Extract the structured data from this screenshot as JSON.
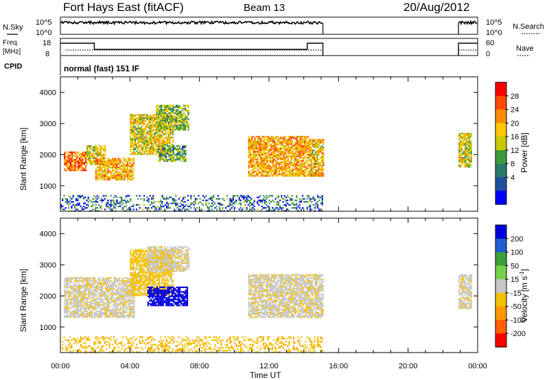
{
  "header": {
    "station": "Fort Hays East (fitACF)",
    "beam": "Beam 13",
    "date": "20/Aug/2012"
  },
  "noise_panel": {
    "left_label": "N.Sky",
    "right_label": "N.Search",
    "left_ticks": [
      "10^5",
      "10^0"
    ],
    "right_ticks": [
      "10^5",
      "10^0"
    ]
  },
  "freq_panel": {
    "left_label_1": "Freq.",
    "left_label_2": "[MHz]",
    "right_label": "Nave",
    "left_ticks": [
      "18",
      "8"
    ],
    "right_ticks": [
      "60",
      "0"
    ]
  },
  "cpid": {
    "label": "CPID",
    "mode": "normal (fast) 151 IF"
  },
  "power_colorbar": {
    "label": "Power [dB]",
    "ticks": [
      "28",
      "24",
      "20",
      "16",
      "12",
      "8",
      "4"
    ],
    "colors": [
      "#ff0000",
      "#ff4a00",
      "#ff8c00",
      "#ffc800",
      "#c8c800",
      "#3c9a3c",
      "#2a7a6a",
      "#1f4f9f",
      "#0000ff"
    ]
  },
  "velocity_colorbar": {
    "label": "Velocity [m s-1]",
    "ticks": [
      "200",
      "100",
      "50",
      "15",
      "-15",
      "-50",
      "-100",
      "-200"
    ],
    "colors": [
      "#0000dd",
      "#1f5fd0",
      "#3aa03a",
      "#77d24a",
      "#c8c8c8",
      "#f4c000",
      "#ff9a00",
      "#ff6000",
      "#ff0000"
    ]
  },
  "chart_data": [
    {
      "type": "heatmap",
      "panel": "power",
      "xlabel": "",
      "ylabel": "Slant Range [km]",
      "yticks": [
        1000,
        2000,
        3000,
        4000
      ],
      "ylim": [
        180,
        4500
      ],
      "xlim_hours": [
        0,
        24
      ],
      "regions": [
        {
          "x": [
            0.2,
            1.5
          ],
          "y": [
            1500,
            2100
          ],
          "value": 24
        },
        {
          "x": [
            1.5,
            2.6
          ],
          "y": [
            1700,
            2300
          ],
          "value": 16
        },
        {
          "x": [
            2.0,
            4.2
          ],
          "y": [
            1200,
            1900
          ],
          "value": 20
        },
        {
          "x": [
            4.0,
            6.5
          ],
          "y": [
            2000,
            3300
          ],
          "value": 16
        },
        {
          "x": [
            5.5,
            7.4
          ],
          "y": [
            2800,
            3600
          ],
          "value": 12
        },
        {
          "x": [
            5.6,
            7.2
          ],
          "y": [
            1800,
            2300
          ],
          "value": 10
        },
        {
          "x": [
            10.8,
            14.3
          ],
          "y": [
            1300,
            2600
          ],
          "value": 20
        },
        {
          "x": [
            14.3,
            15.1
          ],
          "y": [
            1300,
            2500
          ],
          "value": 18
        },
        {
          "x": [
            22.9,
            23.6
          ],
          "y": [
            1600,
            2700
          ],
          "value": 16
        },
        {
          "x": [
            0.0,
            15.1
          ],
          "y": [
            180,
            700
          ],
          "value": 6
        }
      ]
    },
    {
      "type": "heatmap",
      "panel": "velocity",
      "xlabel": "Time UT",
      "ylabel": "Slant Range [km]",
      "xticks": [
        "00:00",
        "04:00",
        "08:00",
        "12:00",
        "16:00",
        "20:00",
        "00:00"
      ],
      "yticks": [
        1000,
        2000,
        3000,
        4000
      ],
      "ylim": [
        180,
        4500
      ],
      "xlim_hours": [
        0,
        24
      ],
      "regions": [
        {
          "x": [
            0.2,
            4.2
          ],
          "y": [
            1300,
            2600
          ],
          "value": -5
        },
        {
          "x": [
            4.0,
            6.5
          ],
          "y": [
            2000,
            3500
          ],
          "value": -30
        },
        {
          "x": [
            5.0,
            7.4
          ],
          "y": [
            2800,
            3600
          ],
          "value": -5
        },
        {
          "x": [
            5.0,
            7.3
          ],
          "y": [
            1700,
            2300
          ],
          "value": 200
        },
        {
          "x": [
            10.8,
            15.1
          ],
          "y": [
            1300,
            2700
          ],
          "value": -5
        },
        {
          "x": [
            22.9,
            23.6
          ],
          "y": [
            1600,
            2700
          ],
          "value": -5
        },
        {
          "x": [
            0.0,
            15.1
          ],
          "y": [
            180,
            700
          ],
          "value": -40
        }
      ]
    }
  ]
}
